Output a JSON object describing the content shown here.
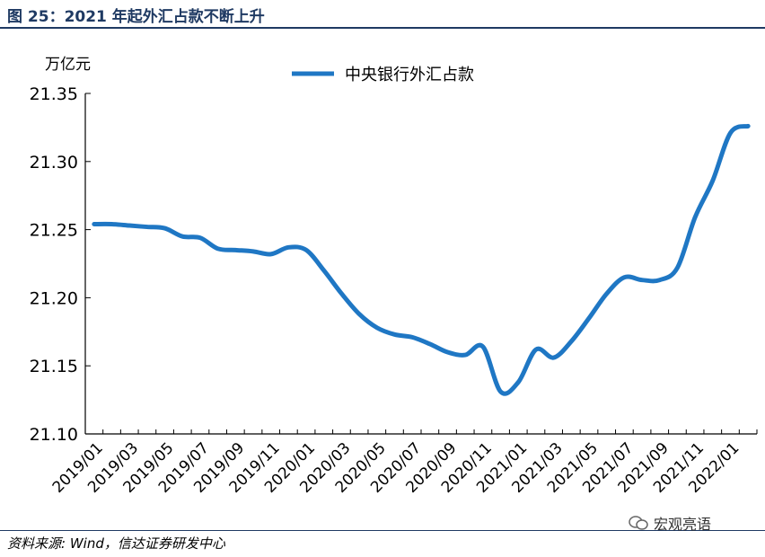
{
  "figure_title": "图 25：2021 年起外汇占款不断上升",
  "source": "资料来源: Wind，信达证券研发中心",
  "watermark": "宏观亮语",
  "chart_data": {
    "type": "line",
    "unit_label": "万亿元",
    "ylim": [
      21.1,
      21.35
    ],
    "yticks": [
      "21.35",
      "21.30",
      "21.25",
      "21.20",
      "21.15",
      "21.10"
    ],
    "ytick_values": [
      21.35,
      21.3,
      21.25,
      21.2,
      21.15,
      21.1
    ],
    "xticks": [
      "2019/01",
      "2019/03",
      "2019/05",
      "2019/07",
      "2019/09",
      "2019/11",
      "2020/01",
      "2020/03",
      "2020/05",
      "2020/07",
      "2020/09",
      "2020/11",
      "2021/01",
      "2021/03",
      "2021/05",
      "2021/07",
      "2021/09",
      "2021/11",
      "2022/01"
    ],
    "legend_position": "top-center",
    "grid": false,
    "line_color": "#1f77c4",
    "series": [
      {
        "name": "中央银行外汇占款",
        "x": [
          "2019/01",
          "2019/02",
          "2019/03",
          "2019/04",
          "2019/05",
          "2019/06",
          "2019/07",
          "2019/08",
          "2019/09",
          "2019/10",
          "2019/11",
          "2019/12",
          "2020/01",
          "2020/02",
          "2020/03",
          "2020/04",
          "2020/05",
          "2020/06",
          "2020/07",
          "2020/08",
          "2020/09",
          "2020/10",
          "2020/11",
          "2020/12",
          "2021/01",
          "2021/02",
          "2021/03",
          "2021/04",
          "2021/05",
          "2021/06",
          "2021/07",
          "2021/08",
          "2021/09",
          "2021/10",
          "2021/11",
          "2021/12",
          "2022/01",
          "2022/02"
        ],
        "values": [
          21.254,
          21.254,
          21.253,
          21.252,
          21.251,
          21.245,
          21.244,
          21.236,
          21.235,
          21.234,
          21.232,
          21.237,
          21.235,
          21.22,
          21.203,
          21.188,
          21.178,
          21.173,
          21.171,
          21.166,
          21.16,
          21.158,
          21.164,
          21.131,
          21.138,
          21.162,
          21.156,
          21.168,
          21.185,
          21.203,
          21.215,
          21.213,
          21.213,
          21.222,
          21.259,
          21.286,
          21.321,
          21.326
        ]
      }
    ]
  }
}
